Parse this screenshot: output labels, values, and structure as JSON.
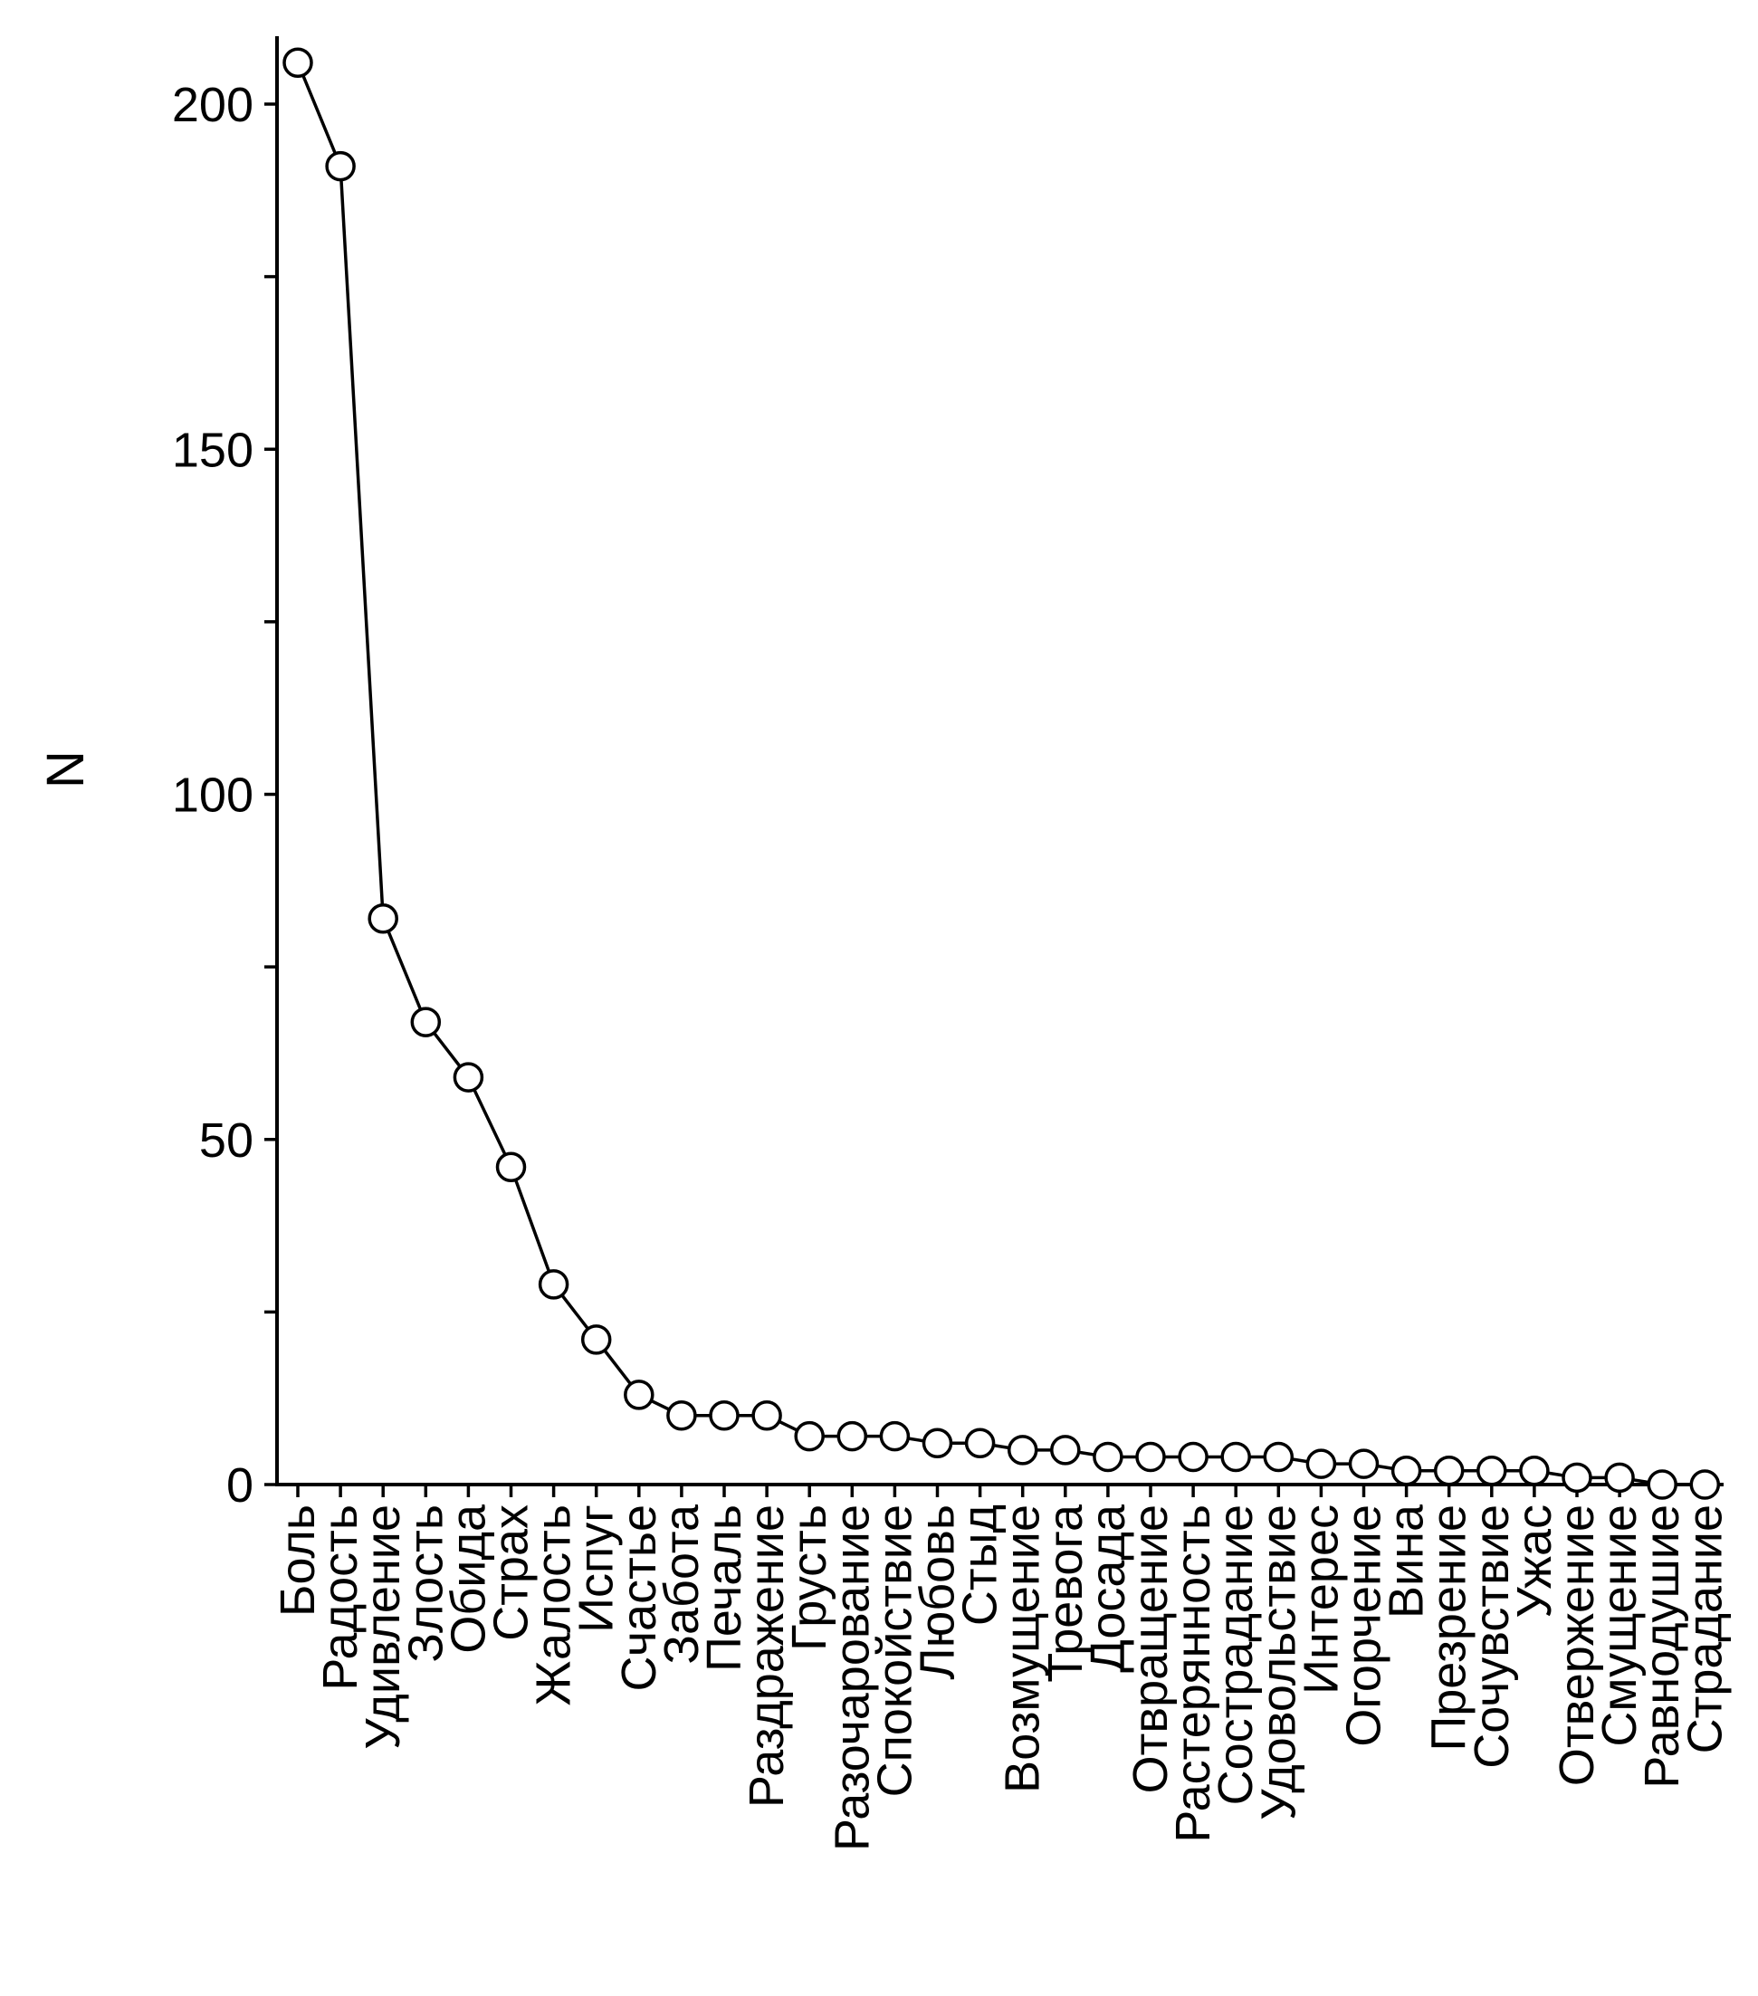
{
  "chart_data": {
    "type": "line",
    "ylabel": "N",
    "xlabel": "",
    "ylim": [
      0,
      210
    ],
    "yticks_major": [
      0,
      50,
      100,
      150,
      200
    ],
    "yticks_minor": [
      25,
      75,
      125,
      175
    ],
    "grid": false,
    "marker": "open-circle",
    "line_color": "#000000",
    "categories": [
      "Боль",
      "Радость",
      "Удивление",
      "Злость",
      "Обида",
      "Страх",
      "Жалость",
      "Испуг",
      "Счастье",
      "Забота",
      "Печаль",
      "Раздражение",
      "Грусть",
      "Разочарование",
      "Спокойствие",
      "Любовь",
      "Стыд",
      "Возмущение",
      "Тревога",
      "Досада",
      "Отвращение",
      "Растерянность",
      "Сострадание",
      "Удовольствие",
      "Интерес",
      "Огорчение",
      "Вина",
      "Презрение",
      "Сочувствие",
      "Ужас",
      "Отвержение",
      "Смущение",
      "Равнодушие",
      "Страдание"
    ],
    "values": [
      206,
      191,
      82,
      67,
      59,
      46,
      29,
      21,
      13,
      10,
      10,
      10,
      7,
      7,
      7,
      6,
      6,
      5,
      5,
      4,
      4,
      4,
      4,
      4,
      3,
      3,
      2,
      2,
      2,
      2,
      1,
      1,
      0,
      0
    ]
  }
}
